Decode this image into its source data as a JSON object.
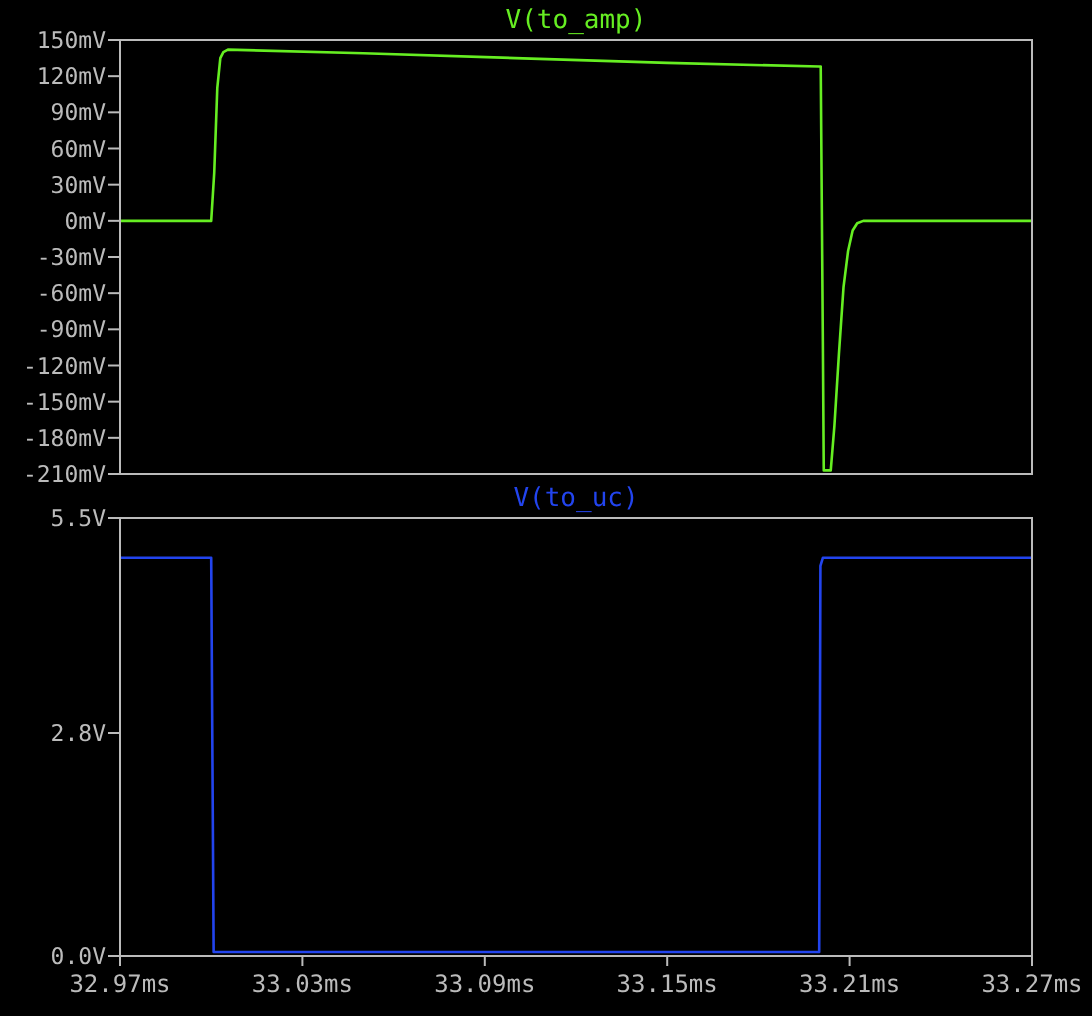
{
  "chart_data": [
    {
      "type": "line",
      "title": "V(to_amp)",
      "xlim": [
        32.97,
        33.27
      ],
      "ylim": [
        -210,
        150
      ],
      "yticks": [
        {
          "value": 150,
          "label": "150mV"
        },
        {
          "value": 120,
          "label": "120mV"
        },
        {
          "value": 90,
          "label": "90mV"
        },
        {
          "value": 60,
          "label": "60mV"
        },
        {
          "value": 30,
          "label": "30mV"
        },
        {
          "value": 0,
          "label": "0mV"
        },
        {
          "value": -30,
          "label": "-30mV"
        },
        {
          "value": -60,
          "label": "-60mV"
        },
        {
          "value": -90,
          "label": "-90mV"
        },
        {
          "value": -120,
          "label": "-120mV"
        },
        {
          "value": -150,
          "label": "-150mV"
        },
        {
          "value": -180,
          "label": "-180mV"
        },
        {
          "value": -210,
          "label": "-210mV"
        }
      ],
      "tick_labels": "y",
      "grid": false,
      "series": [
        {
          "color": "#66ee22",
          "x": [
            32.97,
            33.0,
            33.001,
            33.002,
            33.003,
            33.004,
            33.0055,
            33.05,
            33.1,
            33.15,
            33.2,
            33.2005,
            33.2012,
            33.2015,
            33.2038,
            33.205,
            33.2065,
            33.208,
            33.2095,
            33.211,
            33.2125,
            33.2145,
            33.27
          ],
          "values": [
            0,
            0,
            40,
            110,
            135,
            140,
            142,
            139,
            135,
            131,
            128,
            128,
            -100,
            -207,
            -207,
            -170,
            -110,
            -55,
            -25,
            -8,
            -2,
            0,
            0
          ]
        }
      ]
    },
    {
      "type": "line",
      "title": "V(to_uc)",
      "xlim": [
        32.97,
        33.27
      ],
      "xticks": [
        {
          "value": 32.97,
          "label": "32.97ms"
        },
        {
          "value": 33.03,
          "label": "33.03ms"
        },
        {
          "value": 33.09,
          "label": "33.09ms"
        },
        {
          "value": 33.15,
          "label": "33.15ms"
        },
        {
          "value": 33.21,
          "label": "33.21ms"
        },
        {
          "value": 33.27,
          "label": "33.27ms"
        }
      ],
      "ylim": [
        0,
        5.5
      ],
      "yticks": [
        {
          "value": 0,
          "label": "0.0V"
        },
        {
          "value": 2.8,
          "label": "2.8V"
        },
        {
          "value": 5.5,
          "label": "5.5V"
        }
      ],
      "grid": false,
      "series": [
        {
          "color": "#2244ee",
          "x": [
            32.97,
            33.0,
            33.0008,
            33.2,
            33.2004,
            33.2012,
            33.27
          ],
          "values": [
            5,
            5,
            0.05,
            0.05,
            4.9,
            5,
            5
          ]
        }
      ]
    }
  ]
}
